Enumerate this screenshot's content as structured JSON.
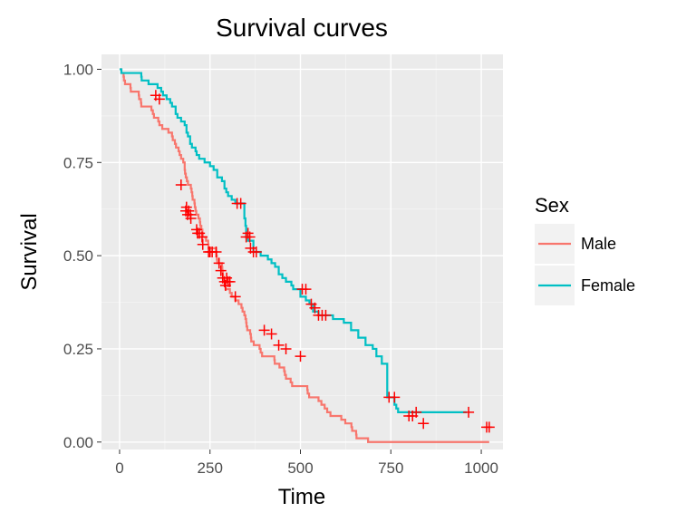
{
  "chart_data": {
    "type": "line",
    "title": "Survival curves",
    "xlabel": "Time",
    "ylabel": "Survival",
    "xlim": [
      -50,
      1060
    ],
    "ylim": [
      -0.02,
      1.04
    ],
    "x_ticks": [
      0,
      250,
      500,
      750,
      1000
    ],
    "x_tick_labels": [
      "0",
      "250",
      "500",
      "750",
      "1000"
    ],
    "y_ticks": [
      0,
      0.25,
      0.5,
      0.75,
      1
    ],
    "y_tick_labels": [
      "0.00",
      "0.25",
      "0.50",
      "0.75",
      "1.00"
    ],
    "grid": true,
    "legend": {
      "title": "Sex",
      "position": "right"
    },
    "series": [
      {
        "name": "Male",
        "color": "#F8766D",
        "steps": [
          [
            0,
            1.0
          ],
          [
            5,
            0.99
          ],
          [
            11,
            0.98
          ],
          [
            12,
            0.97
          ],
          [
            15,
            0.96
          ],
          [
            26,
            0.96
          ],
          [
            30,
            0.95
          ],
          [
            31,
            0.94
          ],
          [
            53,
            0.93
          ],
          [
            54,
            0.92
          ],
          [
            59,
            0.91
          ],
          [
            60,
            0.9
          ],
          [
            81,
            0.9
          ],
          [
            88,
            0.89
          ],
          [
            92,
            0.88
          ],
          [
            95,
            0.87
          ],
          [
            107,
            0.86
          ],
          [
            110,
            0.85
          ],
          [
            118,
            0.84
          ],
          [
            135,
            0.83
          ],
          [
            145,
            0.82
          ],
          [
            147,
            0.81
          ],
          [
            153,
            0.8
          ],
          [
            156,
            0.79
          ],
          [
            163,
            0.78
          ],
          [
            166,
            0.77
          ],
          [
            170,
            0.76
          ],
          [
            176,
            0.75
          ],
          [
            180,
            0.73
          ],
          [
            181,
            0.72
          ],
          [
            183,
            0.71
          ],
          [
            186,
            0.7
          ],
          [
            189,
            0.69
          ],
          [
            197,
            0.68
          ],
          [
            199,
            0.67
          ],
          [
            201,
            0.66
          ],
          [
            202,
            0.65
          ],
          [
            207,
            0.64
          ],
          [
            208,
            0.63
          ],
          [
            210,
            0.62
          ],
          [
            212,
            0.61
          ],
          [
            218,
            0.6
          ],
          [
            222,
            0.59
          ],
          [
            223,
            0.58
          ],
          [
            226,
            0.57
          ],
          [
            229,
            0.56
          ],
          [
            230,
            0.55
          ],
          [
            239,
            0.54
          ],
          [
            245,
            0.53
          ],
          [
            246,
            0.52
          ],
          [
            267,
            0.51
          ],
          [
            268,
            0.5
          ],
          [
            269,
            0.49
          ],
          [
            270,
            0.48
          ],
          [
            283,
            0.47
          ],
          [
            284,
            0.46
          ],
          [
            285,
            0.45
          ],
          [
            286,
            0.44
          ],
          [
            288,
            0.43
          ],
          [
            291,
            0.42
          ],
          [
            293,
            0.41
          ],
          [
            305,
            0.4
          ],
          [
            310,
            0.39
          ],
          [
            320,
            0.38
          ],
          [
            329,
            0.37
          ],
          [
            337,
            0.36
          ],
          [
            340,
            0.35
          ],
          [
            345,
            0.34
          ],
          [
            348,
            0.33
          ],
          [
            350,
            0.32
          ],
          [
            351,
            0.31
          ],
          [
            353,
            0.3
          ],
          [
            361,
            0.29
          ],
          [
            363,
            0.28
          ],
          [
            364,
            0.27
          ],
          [
            371,
            0.26
          ],
          [
            387,
            0.25
          ],
          [
            390,
            0.24
          ],
          [
            394,
            0.23
          ],
          [
            428,
            0.22
          ],
          [
            429,
            0.21
          ],
          [
            442,
            0.2
          ],
          [
            455,
            0.19
          ],
          [
            457,
            0.18
          ],
          [
            460,
            0.17
          ],
          [
            473,
            0.16
          ],
          [
            477,
            0.15
          ],
          [
            519,
            0.14
          ],
          [
            520,
            0.13
          ],
          [
            524,
            0.12
          ],
          [
            550,
            0.11
          ],
          [
            558,
            0.1
          ],
          [
            567,
            0.09
          ],
          [
            574,
            0.08
          ],
          [
            583,
            0.07
          ],
          [
            613,
            0.06
          ],
          [
            624,
            0.05
          ],
          [
            641,
            0.04
          ],
          [
            643,
            0.03
          ],
          [
            654,
            0.02
          ],
          [
            655,
            0.01
          ],
          [
            687,
            0.0
          ],
          [
            689,
            0.0
          ]
        ],
        "final_x": 1022,
        "censored": [
          [
            100,
            0.93
          ],
          [
            110,
            0.92
          ],
          [
            170,
            0.69
          ],
          [
            183,
            0.62
          ],
          [
            185,
            0.63
          ],
          [
            188,
            0.61
          ],
          [
            191,
            0.62
          ],
          [
            196,
            0.61
          ],
          [
            197,
            0.6
          ],
          [
            213,
            0.57
          ],
          [
            216,
            0.56
          ],
          [
            221,
            0.56
          ],
          [
            228,
            0.55
          ],
          [
            230,
            0.53
          ],
          [
            246,
            0.51
          ],
          [
            250,
            0.51
          ],
          [
            256,
            0.51
          ],
          [
            267,
            0.51
          ],
          [
            275,
            0.48
          ],
          [
            280,
            0.46
          ],
          [
            285,
            0.44
          ],
          [
            290,
            0.43
          ],
          [
            293,
            0.42
          ],
          [
            296,
            0.44
          ],
          [
            300,
            0.43
          ],
          [
            305,
            0.43
          ],
          [
            320,
            0.39
          ],
          [
            400,
            0.3
          ],
          [
            420,
            0.29
          ],
          [
            440,
            0.26
          ],
          [
            460,
            0.25
          ],
          [
            500,
            0.23
          ],
          [
            800,
            0.07
          ],
          [
            810,
            0.07
          ],
          [
            820,
            0.08
          ],
          [
            840,
            0.05
          ],
          [
            965,
            0.08
          ],
          [
            1015,
            0.04
          ],
          [
            1022,
            0.04
          ]
        ]
      },
      {
        "name": "Female",
        "color": "#00BFC4",
        "steps": [
          [
            0,
            1.0
          ],
          [
            5,
            0.99
          ],
          [
            60,
            0.98
          ],
          [
            61,
            0.97
          ],
          [
            80,
            0.96
          ],
          [
            105,
            0.95
          ],
          [
            115,
            0.94
          ],
          [
            120,
            0.93
          ],
          [
            130,
            0.92
          ],
          [
            140,
            0.91
          ],
          [
            145,
            0.9
          ],
          [
            155,
            0.88
          ],
          [
            160,
            0.87
          ],
          [
            170,
            0.86
          ],
          [
            180,
            0.85
          ],
          [
            185,
            0.83
          ],
          [
            189,
            0.82
          ],
          [
            195,
            0.8
          ],
          [
            200,
            0.79
          ],
          [
            210,
            0.78
          ],
          [
            213,
            0.77
          ],
          [
            220,
            0.76
          ],
          [
            235,
            0.75
          ],
          [
            250,
            0.74
          ],
          [
            260,
            0.73
          ],
          [
            270,
            0.71
          ],
          [
            283,
            0.7
          ],
          [
            290,
            0.68
          ],
          [
            295,
            0.67
          ],
          [
            300,
            0.66
          ],
          [
            310,
            0.65
          ],
          [
            320,
            0.64
          ],
          [
            345,
            0.6
          ],
          [
            348,
            0.58
          ],
          [
            350,
            0.55
          ],
          [
            355,
            0.54
          ],
          [
            370,
            0.51
          ],
          [
            390,
            0.5
          ],
          [
            410,
            0.49
          ],
          [
            420,
            0.48
          ],
          [
            430,
            0.47
          ],
          [
            440,
            0.45
          ],
          [
            450,
            0.44
          ],
          [
            460,
            0.43
          ],
          [
            475,
            0.42
          ],
          [
            480,
            0.41
          ],
          [
            500,
            0.39
          ],
          [
            515,
            0.38
          ],
          [
            525,
            0.37
          ],
          [
            535,
            0.35
          ],
          [
            550,
            0.34
          ],
          [
            590,
            0.33
          ],
          [
            620,
            0.32
          ],
          [
            640,
            0.3
          ],
          [
            660,
            0.28
          ],
          [
            680,
            0.26
          ],
          [
            700,
            0.25
          ],
          [
            710,
            0.23
          ],
          [
            725,
            0.21
          ],
          [
            740,
            0.12
          ],
          [
            760,
            0.1
          ],
          [
            765,
            0.09
          ],
          [
            770,
            0.08
          ]
        ],
        "final_x": 960,
        "censored": [
          [
            325,
            0.64
          ],
          [
            335,
            0.64
          ],
          [
            350,
            0.55
          ],
          [
            355,
            0.56
          ],
          [
            360,
            0.55
          ],
          [
            362,
            0.52
          ],
          [
            370,
            0.51
          ],
          [
            378,
            0.51
          ],
          [
            505,
            0.41
          ],
          [
            515,
            0.41
          ],
          [
            530,
            0.37
          ],
          [
            540,
            0.36
          ],
          [
            550,
            0.34
          ],
          [
            560,
            0.34
          ],
          [
            570,
            0.34
          ],
          [
            745,
            0.12
          ],
          [
            760,
            0.12
          ]
        ]
      }
    ]
  }
}
